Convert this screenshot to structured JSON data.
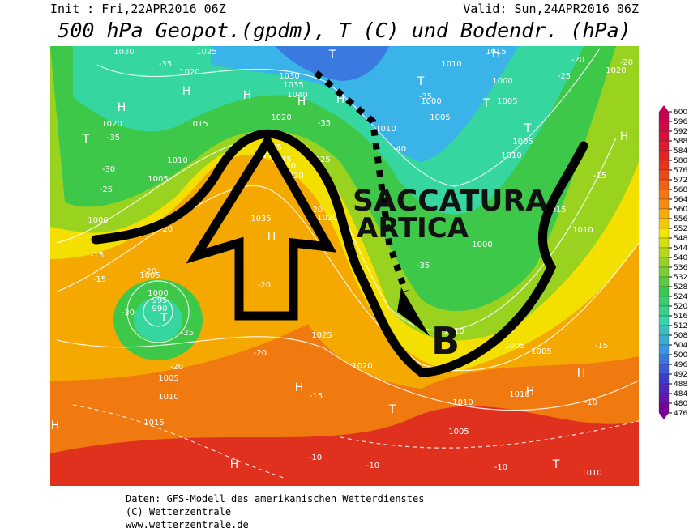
{
  "header": {
    "init": "Init : Fri,22APR2016 06Z",
    "valid": "Valid: Sun,24APR2016 06Z",
    "title": "500 hPa Geopot.(gpdm), T (C) und Bodendr. (hPa)"
  },
  "annotations": {
    "trough": "SACCATURA",
    "trough2": "ARTICA",
    "low": "B"
  },
  "map_labels": [
    "H",
    "H",
    "H",
    "H",
    "H",
    "H",
    "H",
    "H",
    "H",
    "H",
    "H",
    "H",
    "H",
    "H",
    "T",
    "T",
    "T",
    "T",
    "T",
    "T",
    "T",
    "T",
    "T",
    "1030",
    "1020",
    "1025",
    "1020",
    "1015",
    "1010",
    "1005",
    "1000",
    "1030",
    "1035",
    "1040",
    "1020",
    "1035",
    "1020",
    "1020",
    "1035",
    "1025",
    "1020",
    "1010",
    "1010",
    "1015",
    "1005",
    "1000",
    "995",
    "990",
    "1005",
    "1000",
    "1005",
    "1000",
    "1010",
    "1005",
    "1005",
    "1000",
    "1010",
    "1015",
    "1015",
    "1010",
    "1005",
    "1005",
    "1010",
    "1010",
    "1005",
    "1010",
    "1010",
    "1020",
    "1015",
    "1025",
    "-35",
    "-30",
    "-25",
    "-20",
    "-15",
    "-20",
    "-15",
    "-30",
    "-25",
    "-20",
    "-20",
    "-15",
    "-10",
    "-10",
    "-10",
    "-10",
    "-15",
    "-20",
    "-35",
    "-35",
    "-35",
    "-40",
    "-25",
    "-20",
    "-15",
    "-20",
    "-20",
    "-20",
    "-30",
    "-35"
  ],
  "colorbar": {
    "ticks": [
      600,
      596,
      592,
      588,
      584,
      580,
      576,
      572,
      568,
      564,
      560,
      556,
      552,
      548,
      544,
      540,
      536,
      532,
      528,
      524,
      520,
      516,
      512,
      508,
      504,
      500,
      496,
      492,
      488,
      484,
      480,
      476
    ]
  },
  "footer": [
    "Daten: GFS-Modell des amerikanischen Wetterdienstes",
    "(C) Wetterzentrale",
    "www.wetterzentrale.de"
  ]
}
